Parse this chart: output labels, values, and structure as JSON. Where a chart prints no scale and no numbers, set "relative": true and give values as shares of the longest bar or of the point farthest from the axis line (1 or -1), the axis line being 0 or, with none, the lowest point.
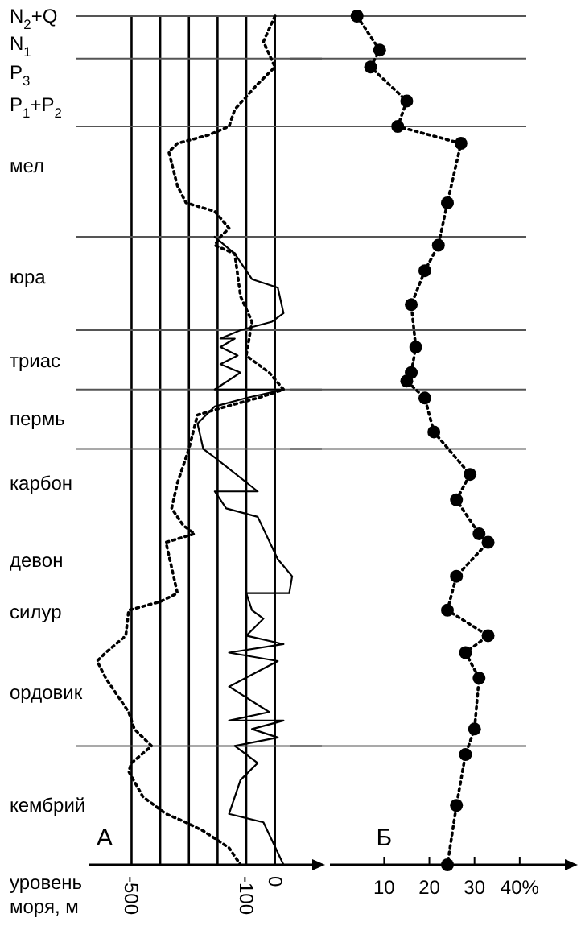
{
  "chart_data": [
    {
      "type": "line",
      "title": "А",
      "xlabel": "уровень моря, м",
      "xlim": [
        -650,
        130
      ],
      "relative": true,
      "xticks": [
        -500,
        {
          "value": -400,
          "label": null
        },
        {
          "value": -300,
          "label": null
        },
        {
          "value": -200,
          "label": null
        },
        -100,
        0
      ],
      "annotations": [
        "N$_{2}$+Q",
        "N$_{1}$",
        "P$_{3}$",
        "P$_{1}$+P$_{2}$",
        "мел",
        "юра",
        "триас",
        "пермь",
        "карбон",
        "девон",
        "силур",
        "ордовик",
        "кембрий"
      ],
      "grid": "x",
      "ref_lines": [
        {
          "axis": "y",
          "value": 1
        },
        {
          "axis": "y",
          "value": 0.95
        },
        {
          "axis": "y",
          "value": 0.87
        },
        {
          "axis": "y",
          "value": 0.74
        },
        {
          "axis": "y",
          "value": 0.63
        },
        {
          "axis": "y",
          "value": 0.56
        },
        {
          "axis": "y",
          "value": 0.49
        },
        {
          "axis": "y",
          "value": 0.14
        }
      ],
      "series": [
        {
          "color": "#000000",
          "line_style": "dotted",
          "x": [
            0,
            -40,
            0,
            -60,
            -140,
            -160,
            -230,
            -340,
            -370,
            -340,
            -310,
            -210,
            -160,
            -190,
            -210,
            -140,
            -120,
            -80,
            -100,
            -20,
            30,
            -60,
            -170,
            -270,
            -300,
            -310,
            -340,
            -360,
            -320,
            -280,
            -380,
            -360,
            -340,
            -400,
            -510,
            -520,
            -590,
            -620,
            -590,
            -510,
            -490,
            -430,
            -500,
            -510,
            -460,
            -380,
            -310,
            -250,
            -160,
            -120
          ],
          "values": [
            1,
            0.97,
            0.94,
            0.92,
            0.89,
            0.87,
            0.86,
            0.85,
            0.84,
            0.8,
            0.78,
            0.77,
            0.75,
            0.74,
            0.73,
            0.72,
            0.67,
            0.64,
            0.6,
            0.58,
            0.56,
            0.55,
            0.54,
            0.53,
            0.49,
            0.48,
            0.45,
            0.42,
            0.4,
            0.39,
            0.38,
            0.35,
            0.32,
            0.31,
            0.3,
            0.27,
            0.25,
            0.24,
            0.22,
            0.18,
            0.16,
            0.14,
            0.12,
            0.11,
            0.08,
            0.06,
            0.05,
            0.04,
            0.02,
            0
          ]
        },
        {
          "color": "#000000",
          "line_style": "solid",
          "x": [
            -210,
            -140,
            -80,
            10,
            30,
            -10,
            -120,
            -190,
            -140,
            -190,
            -130,
            -190,
            -120,
            -210,
            30,
            -100,
            -210,
            -270,
            -250,
            -210,
            -60,
            -210,
            -170,
            -60,
            10,
            60,
            50,
            -100,
            -80,
            -40,
            -100,
            30,
            -160,
            10,
            -160,
            -20,
            -160,
            30,
            -80,
            10,
            -140,
            -60,
            -120,
            -140,
            -160,
            -40,
            30
          ],
          "values": [
            0.74,
            0.72,
            0.69,
            0.68,
            0.65,
            0.64,
            0.63,
            0.62,
            0.62,
            0.61,
            0.6,
            0.59,
            0.58,
            0.56,
            0.56,
            0.55,
            0.54,
            0.52,
            0.49,
            0.48,
            0.44,
            0.44,
            0.42,
            0.41,
            0.36,
            0.34,
            0.32,
            0.32,
            0.3,
            0.29,
            0.27,
            0.26,
            0.25,
            0.24,
            0.21,
            0.18,
            0.17,
            0.17,
            0.16,
            0.15,
            0.14,
            0.12,
            0.1,
            0.08,
            0.06,
            0.05,
            0
          ]
        }
      ]
    },
    {
      "type": "line",
      "title": "Б",
      "xlim": [
        -2,
        50
      ],
      "relative": true,
      "marker": "circle",
      "line_style": "dotted",
      "xticks": [
        10,
        20,
        30,
        {
          "value": 40,
          "label": "40%"
        }
      ],
      "ref_lines": [
        {
          "axis": "y",
          "value": 1
        },
        {
          "axis": "y",
          "value": 0.95
        },
        {
          "axis": "y",
          "value": 0.87
        },
        {
          "axis": "y",
          "value": 0.74
        },
        {
          "axis": "y",
          "value": 0.63
        },
        {
          "axis": "y",
          "value": 0.56
        },
        {
          "axis": "y",
          "value": 0.49
        },
        {
          "axis": "y",
          "value": 0.14
        }
      ],
      "series": [
        {
          "color": "#000000",
          "x": [
            4,
            9,
            7,
            15,
            13,
            27,
            24,
            22,
            19,
            16,
            17,
            16,
            15,
            19,
            21,
            29,
            26,
            31,
            33,
            26,
            24,
            33,
            28,
            31,
            30,
            28,
            26,
            24
          ],
          "values": [
            1,
            0.96,
            0.94,
            0.9,
            0.87,
            0.85,
            0.78,
            0.73,
            0.7,
            0.66,
            0.61,
            0.58,
            0.57,
            0.55,
            0.51,
            0.46,
            0.43,
            0.39,
            0.38,
            0.34,
            0.3,
            0.27,
            0.25,
            0.22,
            0.16,
            0.13,
            0.07,
            0
          ]
        }
      ]
    }
  ]
}
